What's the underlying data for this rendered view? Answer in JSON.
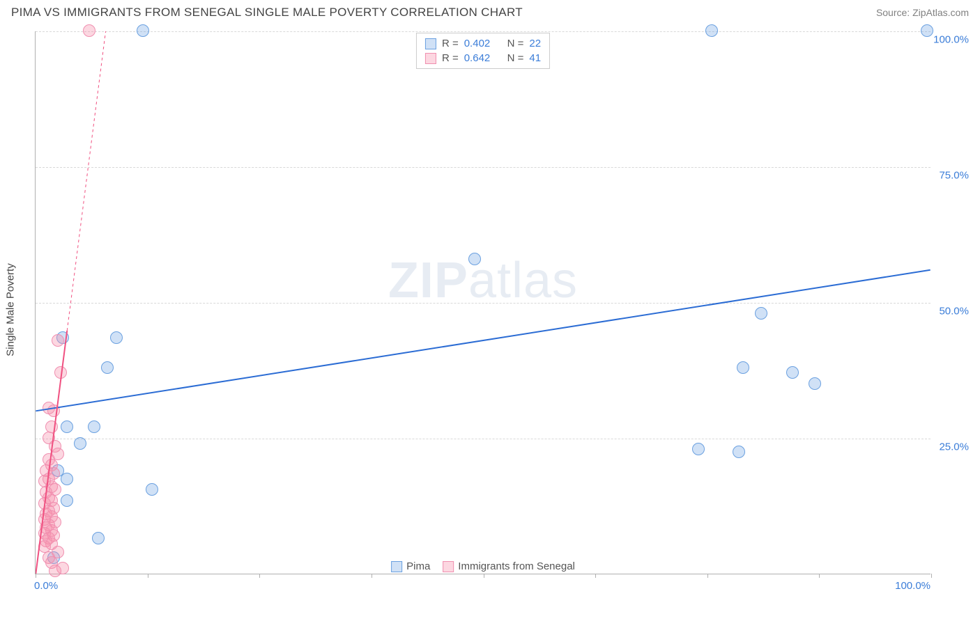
{
  "header": {
    "title": "PIMA VS IMMIGRANTS FROM SENEGAL SINGLE MALE POVERTY CORRELATION CHART",
    "source": "Source: ZipAtlas.com"
  },
  "chart": {
    "type": "scatter",
    "ylabel": "Single Male Poverty",
    "watermark_bold": "ZIP",
    "watermark_light": "atlas",
    "xlim": [
      0,
      100
    ],
    "ylim": [
      0,
      100
    ],
    "xtick_positions": [
      0,
      12.5,
      25,
      37.5,
      50,
      62.5,
      75,
      87.5,
      100
    ],
    "xtick_labels": {
      "0": "0.0%",
      "100": "100.0%"
    },
    "ytick_positions": [
      25,
      50,
      75,
      100
    ],
    "ytick_labels": [
      "25.0%",
      "50.0%",
      "75.0%",
      "100.0%"
    ],
    "grid_color": "#d8d8d8",
    "axis_color": "#b0b0b0",
    "background_color": "#ffffff",
    "series": [
      {
        "name": "Pima",
        "marker_color_fill": "rgba(120,170,230,0.35)",
        "marker_color_stroke": "#6aa0e0",
        "marker_radius": 9,
        "trend_color": "#2b6cd4",
        "trend_width": 2,
        "trend_y_at_x0": 30,
        "trend_y_at_x100": 56,
        "r": "0.402",
        "n": "22",
        "points": [
          {
            "x": 12,
            "y": 100
          },
          {
            "x": 75.5,
            "y": 100
          },
          {
            "x": 99.5,
            "y": 100
          },
          {
            "x": 49,
            "y": 58
          },
          {
            "x": 81,
            "y": 48
          },
          {
            "x": 3,
            "y": 43.5
          },
          {
            "x": 9,
            "y": 43.5
          },
          {
            "x": 8,
            "y": 38
          },
          {
            "x": 79,
            "y": 38
          },
          {
            "x": 84.5,
            "y": 37
          },
          {
            "x": 87,
            "y": 35
          },
          {
            "x": 3.5,
            "y": 27
          },
          {
            "x": 6.5,
            "y": 27
          },
          {
            "x": 5,
            "y": 24
          },
          {
            "x": 74,
            "y": 23
          },
          {
            "x": 78.5,
            "y": 22.5
          },
          {
            "x": 2.5,
            "y": 19
          },
          {
            "x": 3.5,
            "y": 17.5
          },
          {
            "x": 13,
            "y": 15.5
          },
          {
            "x": 3.5,
            "y": 13.5
          },
          {
            "x": 7,
            "y": 6.5
          },
          {
            "x": 2,
            "y": 3
          }
        ]
      },
      {
        "name": "Immigrants from Senegal",
        "marker_color_fill": "rgba(245,140,170,0.35)",
        "marker_color_stroke": "#f08fb0",
        "marker_radius": 9,
        "trend_color": "#f05080",
        "trend_width": 2,
        "trend_y_at_x0": 0,
        "trend_slope": 12.8,
        "trend_solid_until_x": 3.5,
        "r": "0.642",
        "n": "41",
        "points": [
          {
            "x": 6,
            "y": 100
          },
          {
            "x": 2.5,
            "y": 43
          },
          {
            "x": 2.8,
            "y": 37
          },
          {
            "x": 1.5,
            "y": 30.5
          },
          {
            "x": 2,
            "y": 30
          },
          {
            "x": 1.8,
            "y": 27
          },
          {
            "x": 1.5,
            "y": 25
          },
          {
            "x": 2.2,
            "y": 23.5
          },
          {
            "x": 2.5,
            "y": 22
          },
          {
            "x": 1.5,
            "y": 21
          },
          {
            "x": 1.8,
            "y": 20
          },
          {
            "x": 1.2,
            "y": 19
          },
          {
            "x": 2,
            "y": 18.5
          },
          {
            "x": 1.5,
            "y": 17.5
          },
          {
            "x": 1,
            "y": 17
          },
          {
            "x": 1.8,
            "y": 16
          },
          {
            "x": 2.2,
            "y": 15.5
          },
          {
            "x": 1.2,
            "y": 15
          },
          {
            "x": 1.5,
            "y": 14
          },
          {
            "x": 1.8,
            "y": 13.5
          },
          {
            "x": 1,
            "y": 13
          },
          {
            "x": 2,
            "y": 12
          },
          {
            "x": 1.5,
            "y": 11.5
          },
          {
            "x": 1.2,
            "y": 11
          },
          {
            "x": 1.8,
            "y": 10.5
          },
          {
            "x": 1,
            "y": 10
          },
          {
            "x": 2.2,
            "y": 9.5
          },
          {
            "x": 1.5,
            "y": 9
          },
          {
            "x": 1.2,
            "y": 8.5
          },
          {
            "x": 1.8,
            "y": 8
          },
          {
            "x": 1,
            "y": 7.5
          },
          {
            "x": 2,
            "y": 7
          },
          {
            "x": 1.5,
            "y": 6.5
          },
          {
            "x": 1.2,
            "y": 6
          },
          {
            "x": 1.8,
            "y": 5.5
          },
          {
            "x": 1,
            "y": 5
          },
          {
            "x": 2.5,
            "y": 4
          },
          {
            "x": 1.5,
            "y": 3
          },
          {
            "x": 1.8,
            "y": 2
          },
          {
            "x": 3,
            "y": 1
          },
          {
            "x": 2.2,
            "y": 0.5
          }
        ]
      }
    ],
    "legend_top": [
      {
        "swatch_fill": "rgba(120,170,230,0.35)",
        "swatch_stroke": "#6aa0e0",
        "r_label": "R =",
        "r_val": "0.402",
        "n_label": "N =",
        "n_val": "22"
      },
      {
        "swatch_fill": "rgba(245,140,170,0.35)",
        "swatch_stroke": "#f08fb0",
        "r_label": "R =",
        "r_val": "0.642",
        "n_label": "N =",
        "n_val": "41"
      }
    ],
    "legend_bottom": [
      {
        "swatch_fill": "rgba(120,170,230,0.35)",
        "swatch_stroke": "#6aa0e0",
        "label": "Pima"
      },
      {
        "swatch_fill": "rgba(245,140,170,0.35)",
        "swatch_stroke": "#f08fb0",
        "label": "Immigrants from Senegal"
      }
    ]
  }
}
